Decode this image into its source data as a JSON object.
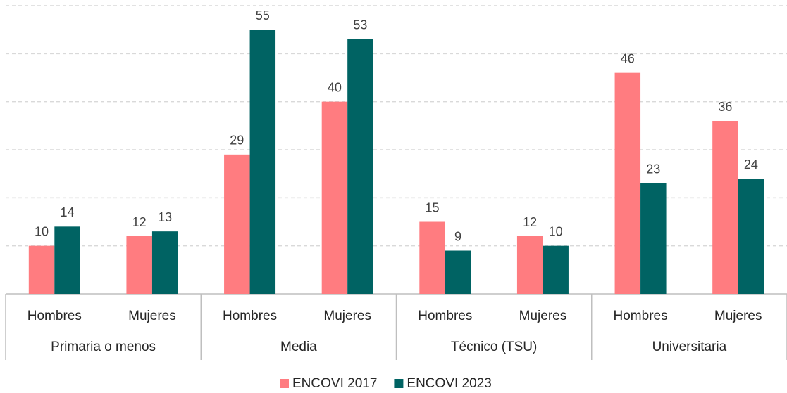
{
  "chart_data": {
    "type": "bar",
    "categories": [
      "Hombres",
      "Mujeres",
      "Hombres",
      "Mujeres",
      "Hombres",
      "Mujeres",
      "Hombres",
      "Mujeres"
    ],
    "groups": [
      "Primaria o menos",
      "Media",
      "Técnico (TSU)",
      "Universitaria"
    ],
    "series": [
      {
        "name": "ENCOVI 2017",
        "color": "#ff7c80",
        "values": [
          10,
          12,
          29,
          40,
          15,
          12,
          46,
          36
        ]
      },
      {
        "name": "ENCOVI 2023",
        "color": "#006363",
        "values": [
          14,
          13,
          55,
          53,
          9,
          10,
          23,
          24
        ]
      }
    ],
    "ylim": [
      0,
      60
    ],
    "yticks": [
      0,
      10,
      20,
      30,
      40,
      50,
      60
    ],
    "grid": true,
    "legend": "bottom"
  }
}
